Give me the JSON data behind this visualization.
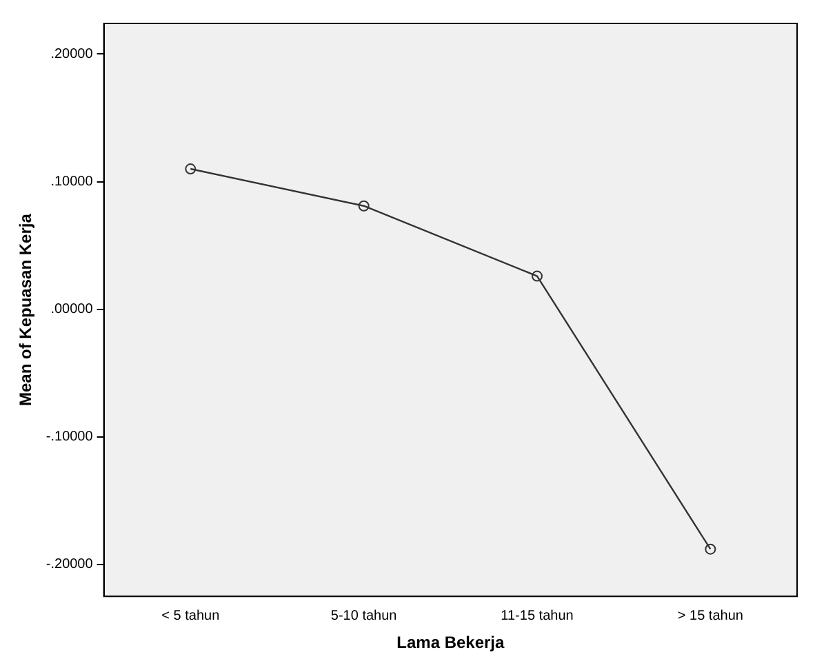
{
  "chart_data": {
    "type": "line",
    "xlabel": "Lama Bekerja",
    "ylabel": "Mean of Kepuasan Kerja",
    "categories": [
      "< 5 tahun",
      "5-10 tahun",
      "11-15 tahun",
      "> 15 tahun"
    ],
    "series": [
      {
        "color": "#333333",
        "values": [
          0.11,
          0.081,
          0.026,
          -0.188
        ]
      }
    ],
    "ylim": [
      -0.225,
      0.224
    ],
    "yticks": [
      {
        "value": -0.2,
        "label": "-.20000"
      },
      {
        "value": -0.1,
        "label": "-.10000"
      },
      {
        "value": 0,
        "label": ".00000"
      },
      {
        "value": 0.1,
        "label": ".10000"
      },
      {
        "value": 0.2,
        "label": ".20000"
      }
    ],
    "grid": false,
    "legend": false,
    "marker": "circle",
    "line_style": "solid"
  }
}
